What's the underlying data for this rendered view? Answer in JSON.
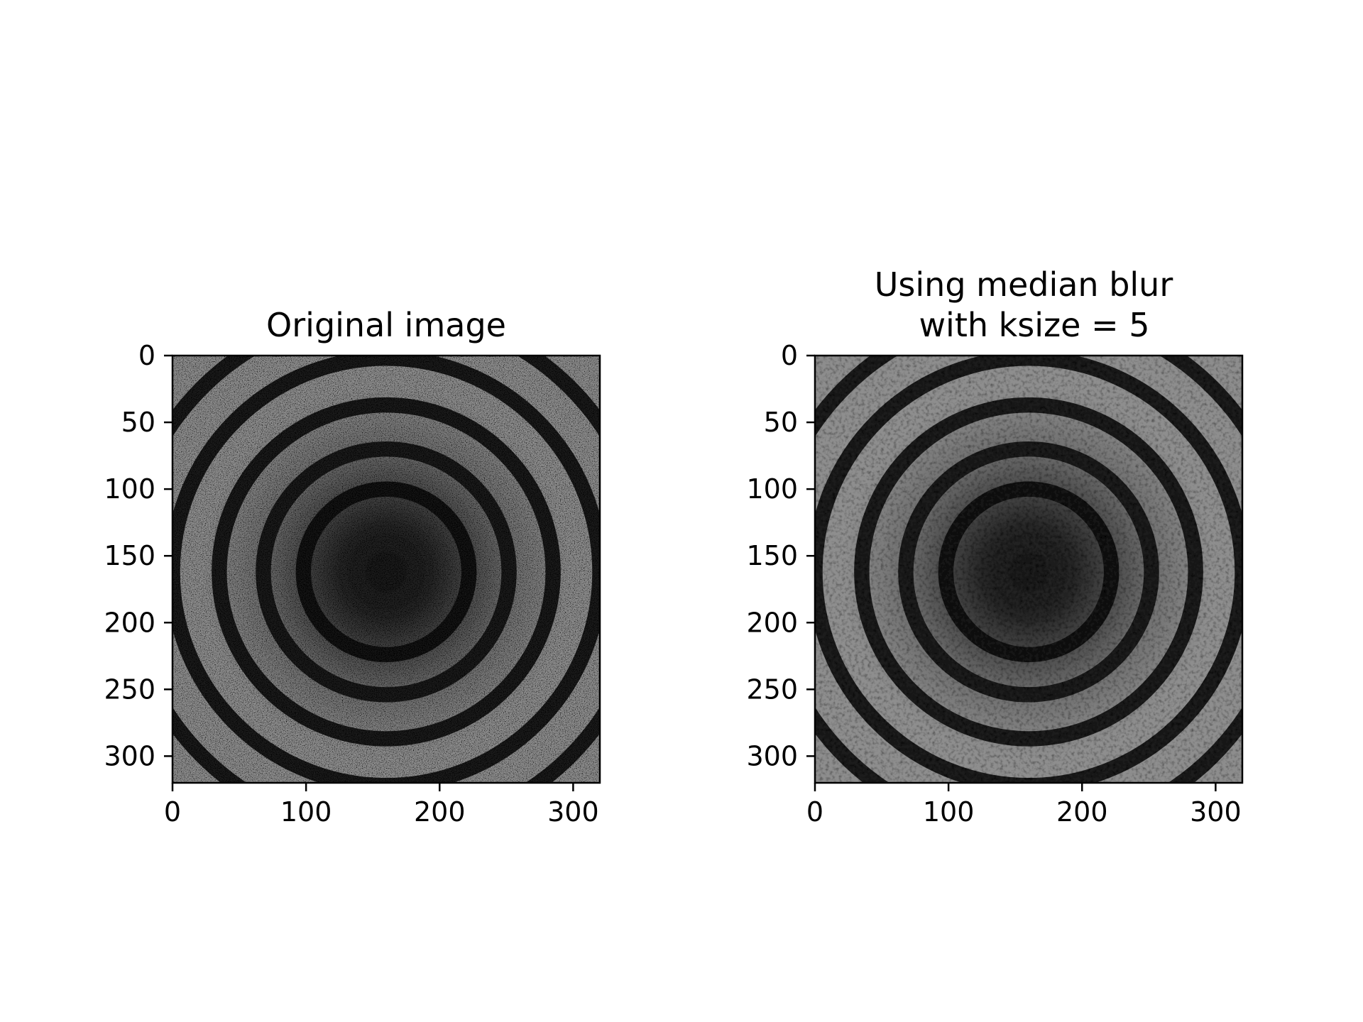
{
  "chart_data": [
    {
      "type": "heatmap",
      "title_lines": [
        "Original image"
      ],
      "xlabel": "",
      "ylabel": "",
      "xlim": [
        0,
        320
      ],
      "ylim": [
        320,
        0
      ],
      "x_ticks": [
        0,
        100,
        200,
        300
      ],
      "y_ticks": [
        0,
        50,
        100,
        150,
        200,
        250,
        300
      ],
      "colormap": "gray",
      "grid": false,
      "image": {
        "pattern": "concentric-rings",
        "center": [
          160,
          162
        ],
        "ring_radii": [
          62,
          92,
          125,
          160,
          195
        ],
        "ring_width": 6,
        "noise": "high"
      }
    },
    {
      "type": "heatmap",
      "title_lines": [
        "Using median blur",
        "with ksize = 5"
      ],
      "xlabel": "",
      "ylabel": "",
      "xlim": [
        0,
        320
      ],
      "ylim": [
        320,
        0
      ],
      "x_ticks": [
        0,
        100,
        200,
        300
      ],
      "y_ticks": [
        0,
        50,
        100,
        150,
        200,
        250,
        300
      ],
      "colormap": "gray",
      "grid": false,
      "image": {
        "pattern": "concentric-rings",
        "center": [
          160,
          162
        ],
        "ring_radii": [
          62,
          92,
          125,
          160,
          195
        ],
        "ring_width": 6,
        "noise": "low"
      }
    }
  ],
  "colors": {
    "background": "#ffffff",
    "axis": "#000000"
  }
}
